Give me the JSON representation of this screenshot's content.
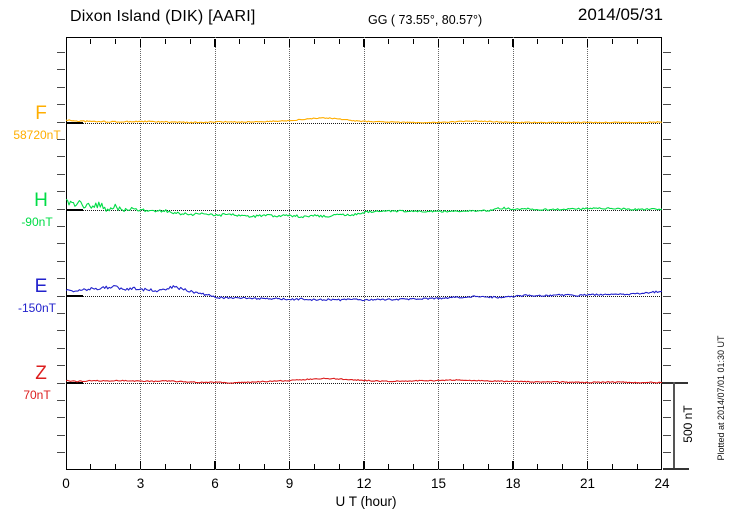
{
  "header": {
    "title": "Dixon Island (DIK)  [AARI]",
    "coordinates": "GG ( 73.55°,  80.57°)",
    "date": "2014/05/31"
  },
  "footer": {
    "xaxis_label": "U T (hour)"
  },
  "annotations": {
    "scale_bar_label": "500 nT",
    "plotted_note": "Plotted at 2014/07/01 01:30 UT"
  },
  "chart_data": {
    "type": "line",
    "xlabel": "U T (hour)",
    "x_range": [
      0,
      24
    ],
    "x_ticks": [
      0,
      3,
      6,
      9,
      12,
      15,
      18,
      21,
      24
    ],
    "scale_bar_nT": 500,
    "grid": "vertical-dotted",
    "points_format": [
      "hour",
      "offset_nT_from_baseline",
      "noise_peak_nT"
    ],
    "series": [
      {
        "name": "F",
        "baseline_nT": 58720,
        "baseline_label": "58720nT",
        "color": "#FFAE00",
        "points": [
          [
            0,
            17,
            8
          ],
          [
            0.5,
            11,
            8
          ],
          [
            1,
            9,
            8
          ],
          [
            2,
            6,
            8
          ],
          [
            3,
            9,
            7
          ],
          [
            4,
            6,
            7
          ],
          [
            5,
            3,
            7
          ],
          [
            6,
            6,
            6
          ],
          [
            7,
            6,
            6
          ],
          [
            8,
            8,
            6
          ],
          [
            9,
            14,
            6
          ],
          [
            9.5,
            20,
            5
          ],
          [
            10,
            26,
            5
          ],
          [
            10.5,
            29,
            5
          ],
          [
            11,
            23,
            5
          ],
          [
            11.5,
            14,
            5
          ],
          [
            12,
            9,
            5
          ],
          [
            13,
            6,
            5
          ],
          [
            14,
            3,
            5
          ],
          [
            15,
            3,
            5
          ],
          [
            16,
            9,
            5
          ],
          [
            16.5,
            11,
            5
          ],
          [
            17,
            9,
            5
          ],
          [
            18,
            3,
            5
          ],
          [
            19,
            3,
            5
          ],
          [
            20,
            3,
            5
          ],
          [
            21,
            3,
            5
          ],
          [
            22,
            3,
            5
          ],
          [
            23,
            3,
            5
          ],
          [
            24,
            6,
            5
          ]
        ]
      },
      {
        "name": "H",
        "baseline_nT": -90,
        "baseline_label": "-90nT",
        "color": "#00DC46",
        "points": [
          [
            0,
            40,
            38
          ],
          [
            0.3,
            23,
            40
          ],
          [
            0.6,
            34,
            40
          ],
          [
            1,
            11,
            38
          ],
          [
            1.3,
            29,
            34
          ],
          [
            1.7,
            0,
            32
          ],
          [
            2,
            17,
            30
          ],
          [
            2.3,
            -11,
            26
          ],
          [
            2.7,
            6,
            24
          ],
          [
            3,
            -6,
            22
          ],
          [
            3.5,
            -11,
            20
          ],
          [
            4,
            -6,
            18
          ],
          [
            4.5,
            -23,
            16
          ],
          [
            5,
            -29,
            16
          ],
          [
            5.5,
            -23,
            16
          ],
          [
            6,
            -34,
            14
          ],
          [
            6.5,
            -29,
            14
          ],
          [
            7,
            -34,
            14
          ],
          [
            7.5,
            -40,
            14
          ],
          [
            8,
            -34,
            14
          ],
          [
            8.5,
            -40,
            14
          ],
          [
            9,
            -34,
            14
          ],
          [
            9.5,
            -40,
            14
          ],
          [
            10,
            -34,
            13
          ],
          [
            10.5,
            -40,
            13
          ],
          [
            11,
            -29,
            13
          ],
          [
            11.5,
            -34,
            12
          ],
          [
            12,
            -17,
            11
          ],
          [
            12.5,
            -11,
            10
          ],
          [
            13,
            -9,
            10
          ],
          [
            14,
            -9,
            10
          ],
          [
            15,
            -11,
            10
          ],
          [
            16,
            -9,
            10
          ],
          [
            17,
            -6,
            10
          ],
          [
            17.5,
            9,
            12
          ],
          [
            18,
            3,
            10
          ],
          [
            18.5,
            6,
            10
          ],
          [
            19,
            0,
            9
          ],
          [
            20,
            0,
            9
          ],
          [
            21,
            6,
            9
          ],
          [
            22,
            6,
            9
          ],
          [
            23,
            0,
            9
          ],
          [
            24,
            3,
            9
          ]
        ]
      },
      {
        "name": "E",
        "baseline_nT": -150,
        "baseline_label": "-150nT",
        "color": "#2222CC",
        "points": [
          [
            0,
            34,
            16
          ],
          [
            0.5,
            29,
            16
          ],
          [
            1,
            40,
            17
          ],
          [
            1.5,
            46,
            18
          ],
          [
            2,
            52,
            18
          ],
          [
            2.3,
            34,
            18
          ],
          [
            2.7,
            46,
            17
          ],
          [
            3,
            34,
            16
          ],
          [
            3.3,
            40,
            16
          ],
          [
            3.7,
            29,
            16
          ],
          [
            4,
            40,
            16
          ],
          [
            4.3,
            52,
            16
          ],
          [
            4.7,
            40,
            15
          ],
          [
            5,
            29,
            14
          ],
          [
            5.3,
            17,
            13
          ],
          [
            5.7,
            6,
            12
          ],
          [
            6,
            -6,
            12
          ],
          [
            6.3,
            -11,
            11
          ],
          [
            6.7,
            -9,
            11
          ],
          [
            7,
            -14,
            11
          ],
          [
            7.5,
            -11,
            11
          ],
          [
            8,
            -17,
            11
          ],
          [
            8.5,
            -14,
            10
          ],
          [
            9,
            -20,
            10
          ],
          [
            9.5,
            -17,
            10
          ],
          [
            10,
            -23,
            10
          ],
          [
            10.5,
            -20,
            10
          ],
          [
            11,
            -23,
            10
          ],
          [
            11.5,
            -20,
            10
          ],
          [
            12,
            -23,
            10
          ],
          [
            13,
            -20,
            10
          ],
          [
            14,
            -17,
            10
          ],
          [
            15,
            -14,
            10
          ],
          [
            15.5,
            -9,
            10
          ],
          [
            16,
            -6,
            10
          ],
          [
            16.5,
            -3,
            10
          ],
          [
            17,
            -6,
            10
          ],
          [
            17.5,
            -9,
            10
          ],
          [
            18,
            -3,
            10
          ],
          [
            18.5,
            3,
            10
          ],
          [
            19,
            0,
            10
          ],
          [
            19.5,
            3,
            10
          ],
          [
            20,
            6,
            10
          ],
          [
            20.5,
            3,
            10
          ],
          [
            21,
            6,
            10
          ],
          [
            21.5,
            9,
            10
          ],
          [
            22,
            11,
            10
          ],
          [
            22.5,
            9,
            10
          ],
          [
            23,
            14,
            10
          ],
          [
            23.5,
            20,
            11
          ],
          [
            24,
            26,
            11
          ]
        ]
      },
      {
        "name": "Z",
        "baseline_nT": 70,
        "baseline_label": "70nT",
        "color": "#DC1E1E",
        "points": [
          [
            0,
            11,
            6
          ],
          [
            0.5,
            6,
            6
          ],
          [
            1,
            11,
            6
          ],
          [
            1.5,
            9,
            6
          ],
          [
            2,
            11,
            6
          ],
          [
            2.5,
            9,
            6
          ],
          [
            3,
            9,
            6
          ],
          [
            3.5,
            6,
            6
          ],
          [
            4,
            9,
            6
          ],
          [
            4.5,
            6,
            6
          ],
          [
            5,
            3,
            6
          ],
          [
            5.5,
            0,
            6
          ],
          [
            6,
            3,
            6
          ],
          [
            6.5,
            -3,
            6
          ],
          [
            7,
            0,
            6
          ],
          [
            7.5,
            3,
            6
          ],
          [
            8,
            6,
            6
          ],
          [
            8.5,
            9,
            6
          ],
          [
            9,
            11,
            6
          ],
          [
            9.5,
            17,
            6
          ],
          [
            10,
            20,
            6
          ],
          [
            10.5,
            23,
            6
          ],
          [
            11,
            20,
            6
          ],
          [
            11.5,
            17,
            6
          ],
          [
            12,
            11,
            6
          ],
          [
            12.5,
            9,
            6
          ],
          [
            13,
            6,
            6
          ],
          [
            14,
            9,
            6
          ],
          [
            15,
            11,
            6
          ],
          [
            15.5,
            14,
            6
          ],
          [
            16,
            14,
            6
          ],
          [
            16.5,
            11,
            6
          ],
          [
            17,
            9,
            6
          ],
          [
            18,
            6,
            6
          ],
          [
            19,
            3,
            6
          ],
          [
            20,
            3,
            6
          ],
          [
            21,
            0,
            6
          ],
          [
            22,
            3,
            5
          ],
          [
            23,
            0,
            5
          ],
          [
            24,
            0,
            5
          ]
        ]
      }
    ]
  }
}
